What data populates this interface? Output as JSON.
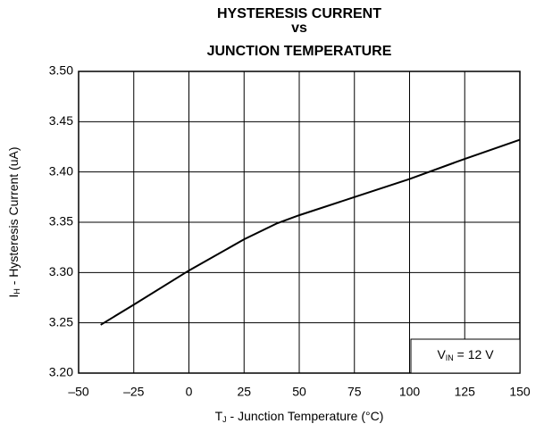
{
  "chart_data": {
    "type": "line",
    "title": [
      "HYSTERESIS CURRENT",
      "vs",
      "JUNCTION TEMPERATURE"
    ],
    "x_label": {
      "main": "T",
      "sub": "J",
      "rest": " - Junction Temperature (°C)"
    },
    "y_label": {
      "main": "I",
      "sub": "H",
      "rest": " - Hysteresis Current (uA)"
    },
    "annotation": {
      "main": "V",
      "sub": "IN",
      "rest": " = 12 V"
    },
    "x": [
      -40,
      -25,
      0,
      25,
      40,
      50,
      75,
      100,
      125,
      150
    ],
    "values": [
      3.248,
      3.268,
      3.302,
      3.333,
      3.349,
      3.357,
      3.375,
      3.393,
      3.413,
      3.432
    ],
    "color": "#000000",
    "xlim": [
      -50,
      150
    ],
    "xticks": [
      {
        "value": -50,
        "label": "–50"
      },
      {
        "value": -25,
        "label": "–25"
      },
      0,
      25,
      50,
      75,
      100,
      125,
      150
    ],
    "ylim": [
      3.2,
      3.5
    ],
    "yticks": [
      {
        "value": 3.2,
        "label": "3.20"
      },
      3.25,
      {
        "value": 3.3,
        "label": "3.30"
      },
      3.35,
      {
        "value": 3.4,
        "label": "3.40"
      },
      3.45,
      {
        "value": 3.5,
        "label": "3.50"
      }
    ],
    "grid": true
  }
}
